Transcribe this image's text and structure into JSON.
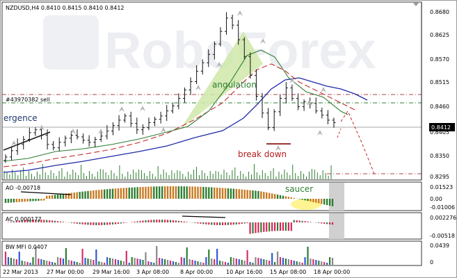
{
  "symbol_header": "NZDUSD,H4  0.8410 0.8415 0.8410 0.8412",
  "watermark": "RoboForex",
  "price_axis": [
    "0.8680",
    "0.8625",
    "0.8570",
    "0.8515",
    "0.8460",
    "0.8405",
    "0.8350",
    "0.8295"
  ],
  "current_price": "0.8412",
  "order_label": "#43970382 sell",
  "annotations": {
    "angulation": "angulation",
    "break_down": "break down",
    "divergence": "ergence",
    "saucer": "saucer"
  },
  "ao": {
    "label": "AO -0.00718",
    "axis": [
      "0.01523",
      "0.00",
      "-0.01006"
    ]
  },
  "ac": {
    "label": "AC 0.000177",
    "axis": [
      "0.002276",
      "-0.00518"
    ]
  },
  "mfi": {
    "label": "BW MFI 0.0407",
    "axis": [
      "0.0439",
      "0"
    ]
  },
  "time_axis": [
    "22 Mar 2013",
    "27 Mar 00:00",
    "29 Mar 16:00",
    "3 Apr 08:00",
    "8 Apr 00:00",
    "10 Apr 16:00",
    "15 Apr 08:00",
    "18 Apr 00:00"
  ],
  "colors": {
    "grid": "#d6d6d6",
    "alligator_jaw": "#1f2aa8",
    "alligator_teeth": "#c62828",
    "alligator_lips": "#2e7d32",
    "bull": "#2e7d32",
    "bear": "#c7781f",
    "ac_bear": "#d6245a",
    "mfi_red": "#d62f6b",
    "mfi_blue": "#2f58d6",
    "mfi_green": "#2e7d32",
    "current_price_bg": "#000000"
  },
  "chart_data": {
    "type": "candlestick",
    "ylim": [
      0.8275,
      0.87
    ],
    "close": [
      0.833,
      0.8345,
      0.836,
      0.8372,
      0.8388,
      0.8395,
      0.8382,
      0.836,
      0.8352,
      0.8365,
      0.8375,
      0.8382,
      0.8378,
      0.837,
      0.8365,
      0.8372,
      0.838,
      0.8392,
      0.8405,
      0.8418,
      0.8428,
      0.841,
      0.8395,
      0.84,
      0.8412,
      0.842,
      0.8428,
      0.844,
      0.8452,
      0.847,
      0.849,
      0.851,
      0.8535,
      0.8555,
      0.8575,
      0.86,
      0.863,
      0.8662,
      0.8645,
      0.861,
      0.857,
      0.8525,
      0.8475,
      0.8435,
      0.84,
      0.8438,
      0.847,
      0.8495,
      0.847,
      0.845,
      0.8462,
      0.8458,
      0.844,
      0.843,
      0.8418,
      0.8412
    ]
  }
}
